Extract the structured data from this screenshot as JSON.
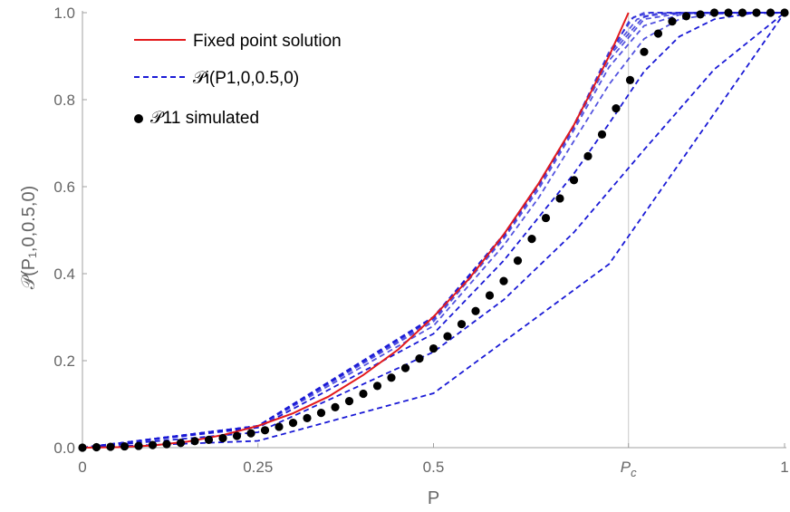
{
  "chart_data": {
    "type": "line",
    "xlabel": "P",
    "ylabel": "𝒫(P₁,0,0.5,0)",
    "xlim": [
      0,
      1
    ],
    "ylim": [
      0,
      1
    ],
    "x_ticks": [
      {
        "value": 0,
        "label": "0"
      },
      {
        "value": 0.25,
        "label": "0.25"
      },
      {
        "value": 0.5,
        "label": "0.5"
      },
      {
        "value": 0.7777,
        "label": "Pc"
      },
      {
        "value": 1,
        "label": "1"
      }
    ],
    "y_ticks": [
      {
        "value": 0,
        "label": "0.0"
      },
      {
        "value": 0.2,
        "label": "0.2"
      },
      {
        "value": 0.4,
        "label": "0.4"
      },
      {
        "value": 0.6,
        "label": "0.6"
      },
      {
        "value": 0.8,
        "label": "0.8"
      },
      {
        "value": 1,
        "label": "1.0"
      }
    ],
    "critical_point": {
      "x": 0.7777,
      "label": "Pc"
    },
    "legend": {
      "position": "top-left",
      "fixed_point": "Fixed point solution",
      "iterates": "𝒫i(P1,0,0.5,0)",
      "simulated": "𝒫11 simulated"
    },
    "series": [
      {
        "name": "Fixed point solution",
        "style": "solid",
        "color": "#e31a1c",
        "x": [
          0,
          0.05,
          0.1,
          0.15,
          0.2,
          0.25,
          0.3,
          0.35,
          0.4,
          0.45,
          0.5,
          0.55,
          0.6,
          0.65,
          0.7,
          0.725,
          0.75,
          0.7777
        ],
        "y": [
          0,
          0.001,
          0.005,
          0.014,
          0.029,
          0.05,
          0.079,
          0.117,
          0.167,
          0.226,
          0.301,
          0.387,
          0.49,
          0.608,
          0.742,
          0.82,
          0.9,
          1.0
        ]
      },
      {
        "name": "𝒫i(P1,0,0.5,0)",
        "style": "dashed",
        "color": "#1a1ad6",
        "iterations": [
          {
            "x": [
              0,
              0.25,
              0.5,
              0.75,
              1
            ],
            "y": [
              0,
              0.0156,
              0.125,
              0.4219,
              1.0
            ]
          },
          {
            "x": [
              0,
              0.25,
              0.5,
              0.6,
              0.7,
              0.8,
              0.9,
              1
            ],
            "y": [
              0,
              0.0355,
              0.22,
              0.34,
              0.495,
              0.685,
              0.87,
              1.0
            ]
          },
          {
            "x": [
              0,
              0.25,
              0.5,
              0.6,
              0.7,
              0.75,
              0.8,
              0.85,
              0.9,
              0.95,
              1
            ],
            "y": [
              0,
              0.046,
              0.262,
              0.43,
              0.63,
              0.745,
              0.865,
              0.945,
              0.985,
              0.998,
              1.0
            ]
          },
          {
            "x": [
              0,
              0.25,
              0.5,
              0.6,
              0.65,
              0.7,
              0.75,
              0.8,
              0.85,
              0.9,
              0.95,
              1
            ],
            "y": [
              0,
              0.049,
              0.28,
              0.465,
              0.575,
              0.705,
              0.835,
              0.94,
              0.985,
              0.997,
              1.0,
              1.0
            ]
          },
          {
            "x": [
              0,
              0.25,
              0.5,
              0.6,
              0.65,
              0.7,
              0.75,
              0.8,
              0.85,
              0.9,
              1
            ],
            "y": [
              0,
              0.05,
              0.29,
              0.48,
              0.595,
              0.73,
              0.875,
              0.97,
              0.995,
              1.0,
              1.0
            ]
          },
          {
            "x": [
              0,
              0.25,
              0.5,
              0.6,
              0.65,
              0.7,
              0.75,
              0.8,
              0.85,
              0.9,
              1
            ],
            "y": [
              0,
              0.05,
              0.295,
              0.485,
              0.602,
              0.737,
              0.89,
              0.985,
              0.998,
              1.0,
              1.0
            ]
          },
          {
            "x": [
              0,
              0.25,
              0.5,
              0.6,
              0.65,
              0.7,
              0.75,
              0.8,
              0.85,
              1
            ],
            "y": [
              0,
              0.05,
              0.298,
              0.487,
              0.605,
              0.74,
              0.9,
              0.992,
              1.0,
              1.0
            ]
          },
          {
            "x": [
              0,
              0.25,
              0.5,
              0.6,
              0.65,
              0.7,
              0.75,
              0.79,
              0.82,
              1
            ],
            "y": [
              0,
              0.05,
              0.3,
              0.489,
              0.607,
              0.741,
              0.905,
              0.985,
              0.999,
              1.0
            ]
          },
          {
            "x": [
              0,
              0.25,
              0.5,
              0.6,
              0.65,
              0.7,
              0.75,
              0.785,
              0.81,
              1
            ],
            "y": [
              0,
              0.05,
              0.3,
              0.49,
              0.608,
              0.742,
              0.91,
              0.99,
              1.0,
              1.0
            ]
          },
          {
            "x": [
              0,
              0.25,
              0.5,
              0.6,
              0.65,
              0.7,
              0.75,
              0.78,
              0.8,
              1
            ],
            "y": [
              0,
              0.05,
              0.301,
              0.49,
              0.608,
              0.742,
              0.9,
              0.985,
              1.0,
              1.0
            ]
          }
        ]
      },
      {
        "name": "𝒫11 simulated",
        "style": "markers",
        "color": "#000000",
        "x": [
          0,
          0.02,
          0.04,
          0.06,
          0.08,
          0.1,
          0.12,
          0.14,
          0.16,
          0.18,
          0.2,
          0.22,
          0.24,
          0.26,
          0.28,
          0.3,
          0.32,
          0.34,
          0.36,
          0.38,
          0.4,
          0.42,
          0.44,
          0.46,
          0.48,
          0.5,
          0.52,
          0.54,
          0.56,
          0.58,
          0.6,
          0.62,
          0.64,
          0.66,
          0.68,
          0.7,
          0.72,
          0.74,
          0.76,
          0.78,
          0.8,
          0.82,
          0.84,
          0.86,
          0.88,
          0.9,
          0.92,
          0.94,
          0.96,
          0.98,
          1
        ],
        "y": [
          0,
          0.001,
          0.002,
          0.003,
          0.004,
          0.006,
          0.008,
          0.011,
          0.015,
          0.018,
          0.022,
          0.027,
          0.033,
          0.04,
          0.048,
          0.057,
          0.068,
          0.08,
          0.093,
          0.107,
          0.124,
          0.142,
          0.161,
          0.183,
          0.205,
          0.228,
          0.256,
          0.284,
          0.314,
          0.35,
          0.383,
          0.43,
          0.48,
          0.528,
          0.573,
          0.615,
          0.67,
          0.72,
          0.78,
          0.845,
          0.91,
          0.952,
          0.98,
          0.992,
          0.996,
          1.0,
          1.0,
          1.0,
          1.0,
          1.0,
          1.0
        ]
      }
    ]
  }
}
